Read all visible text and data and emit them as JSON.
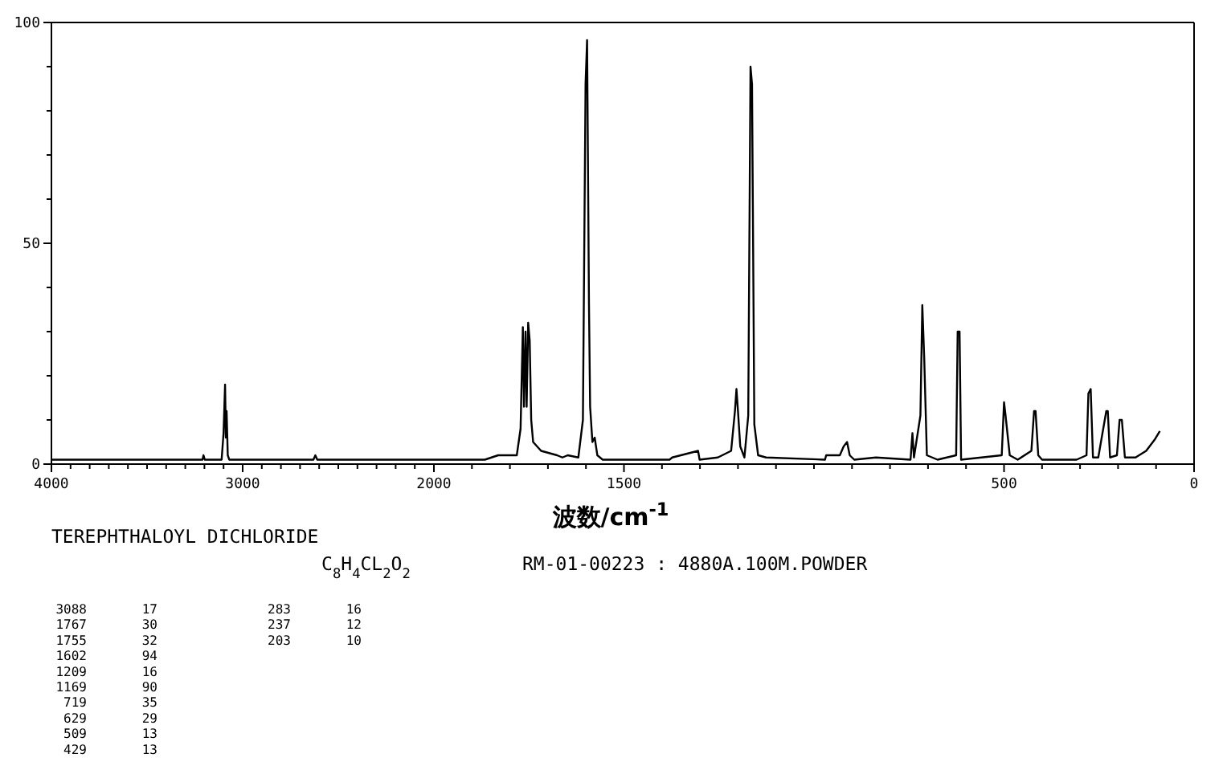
{
  "chart_data": [
    {
      "type": "line",
      "xlim": [
        4000,
        2000
      ],
      "ylim": [
        0,
        100
      ],
      "xticks": [
        4000,
        {
          "value": 3900,
          "label": null
        },
        {
          "value": 3800,
          "label": null
        },
        {
          "value": 3700,
          "label": null
        },
        {
          "value": 3600,
          "label": null
        },
        {
          "value": 3500,
          "label": null
        },
        {
          "value": 3400,
          "label": null
        },
        {
          "value": 3300,
          "label": null
        },
        {
          "value": 3200,
          "label": null
        },
        {
          "value": 3100,
          "label": null
        },
        3000,
        {
          "value": 2900,
          "label": null
        },
        {
          "value": 2800,
          "label": null
        },
        {
          "value": 2700,
          "label": null
        },
        {
          "value": 2600,
          "label": null
        },
        {
          "value": 2500,
          "label": null
        },
        {
          "value": 2400,
          "label": null
        },
        {
          "value": 2300,
          "label": null
        },
        {
          "value": 2200,
          "label": null
        },
        {
          "value": 2100,
          "label": null
        },
        2000
      ],
      "yticks": [
        0,
        {
          "value": 10,
          "label": null
        },
        {
          "value": 20,
          "label": null
        },
        {
          "value": 30,
          "label": null
        },
        {
          "value": 40,
          "label": null
        },
        50,
        {
          "value": 60,
          "label": null
        },
        {
          "value": 70,
          "label": null
        },
        {
          "value": 80,
          "label": null
        },
        {
          "value": 90,
          "label": null
        },
        100
      ],
      "series": [
        {
          "color": "#000000",
          "x": [
            4000,
            3210,
            3205,
            3198,
            3110,
            3100,
            3092,
            3088,
            3084,
            3078,
            3070,
            2630,
            2620,
            2610,
            2000
          ],
          "values": [
            1,
            1,
            2,
            1,
            1,
            7,
            18,
            6,
            12,
            2,
            1,
            1,
            2,
            1,
            1
          ]
        }
      ]
    },
    {
      "type": "line",
      "xlim": [
        2000,
        0
      ],
      "ylim": [
        0,
        100
      ],
      "tick_labels": "x",
      "xlabel": "波数/cm$^{-1}$",
      "xticks": [
        {
          "value": 2000,
          "label": null
        },
        {
          "value": 1900,
          "label": null
        },
        {
          "value": 1800,
          "label": null
        },
        {
          "value": 1700,
          "label": null
        },
        {
          "value": 1600,
          "label": null
        },
        1500,
        {
          "value": 1400,
          "label": null
        },
        {
          "value": 1300,
          "label": null
        },
        {
          "value": 1200,
          "label": null
        },
        {
          "value": 1100,
          "label": null
        },
        {
          "value": 1000,
          "label": null
        },
        {
          "value": 900,
          "label": null
        },
        {
          "value": 800,
          "label": null
        },
        {
          "value": 700,
          "label": null
        },
        {
          "value": 600,
          "label": null
        },
        500,
        {
          "value": 400,
          "label": null
        },
        {
          "value": 300,
          "label": null
        },
        {
          "value": 200,
          "label": null
        },
        {
          "value": 100,
          "label": null
        },
        0
      ],
      "series": [
        {
          "color": "#000000",
          "x": [
            2000,
            1866,
            1831,
            1782,
            1772,
            1766,
            1763,
            1759,
            1756,
            1752,
            1748,
            1744,
            1739,
            1718,
            1676,
            1662,
            1648,
            1620,
            1608,
            1601,
            1597,
            1592,
            1589,
            1583,
            1577,
            1570,
            1556,
            1549,
            1380,
            1373,
            1305,
            1301,
            1253,
            1218,
            1208,
            1204,
            1200,
            1194,
            1183,
            1173,
            1167,
            1163,
            1157,
            1147,
            1126,
            971,
            968,
            932,
            922,
            913,
            906,
            894,
            837,
            746,
            741,
            737,
            720,
            715,
            710,
            703,
            675,
            626,
            622,
            617,
            613,
            506,
            500,
            496,
            485,
            464,
            428,
            421,
            417,
            410,
            400,
            309,
            283,
            278,
            272,
            266,
            252,
            231,
            227,
            221,
            203,
            196,
            190,
            182,
            154,
            126,
            104,
            90
          ],
          "values": [
            1,
            1,
            2,
            2,
            8,
            31,
            13,
            30,
            13,
            32,
            28,
            10,
            5,
            3,
            2,
            1.5,
            2,
            1.5,
            10,
            86,
            96,
            36,
            13,
            5,
            6,
            2,
            1,
            1,
            1,
            1.5,
            3,
            1,
            1.5,
            3,
            12,
            17,
            12,
            4,
            1.5,
            11,
            90,
            86,
            9,
            2,
            1.5,
            1,
            2,
            2,
            4,
            5,
            2,
            1,
            1.5,
            1,
            7,
            1.5,
            11,
            36,
            24,
            2,
            1,
            2,
            30,
            30,
            1,
            2,
            14,
            11,
            2,
            1,
            3,
            12,
            12,
            2,
            1,
            1,
            2,
            16,
            17,
            1.5,
            1.5,
            12,
            12,
            1.5,
            2,
            10,
            10,
            1.5,
            1.5,
            3,
            5.5,
            7.5
          ]
        }
      ]
    },
    {
      "type": "other",
      "title": "TEREPHTHALOYL DICHLORIDE",
      "subtitle": "C$_{8}$H$_{4}$CL$_{2}$O$_{2}$",
      "annotations": [
        "RM-01-00223 : 4880A.100M.POWDER"
      ],
      "categories": [
        "3088",
        "1767",
        "1755",
        "1602",
        "1209",
        "1169",
        "719",
        "629",
        "509",
        "429",
        "283",
        "237",
        "203"
      ],
      "values": [
        17,
        30,
        32,
        94,
        16,
        90,
        35,
        29,
        13,
        13,
        16,
        12,
        10
      ],
      "data_labels": true
    }
  ]
}
